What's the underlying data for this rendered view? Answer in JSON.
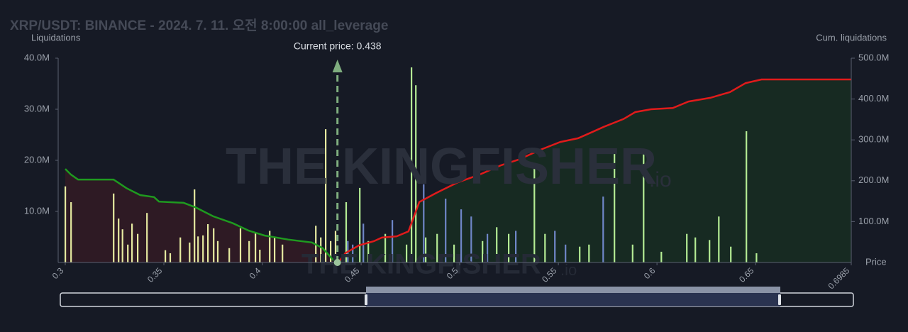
{
  "chart_data": {
    "type": "bar",
    "title": "XRP/USDT: BINANCE - 2024. 7. 11. 오전 8:00:00 all_leverage",
    "y_label": "Liquidations",
    "y2_label": "Cum. liquidations",
    "x_label": "Price",
    "annotation": "Current price: 0.438",
    "current_price": 0.438,
    "watermark": "THE KINGFISHER",
    "watermark_suffix": ".io",
    "xlim": [
      0.3,
      0.6985
    ],
    "xticks": [
      0.3,
      0.35,
      0.4,
      0.45,
      0.5,
      0.55,
      0.6,
      0.65,
      0.6985
    ],
    "ylim": [
      0,
      40
    ],
    "yticks": [
      {
        "value": 10,
        "label": "10.0M"
      },
      {
        "value": 20,
        "label": "20.0M"
      },
      {
        "value": 30,
        "label": "30.0M"
      },
      {
        "value": 40,
        "label": "40.0M"
      }
    ],
    "y2lim": [
      0,
      500
    ],
    "y2ticks": [
      {
        "value": 100,
        "label": "100.0M"
      },
      {
        "value": 200,
        "label": "200.0M"
      },
      {
        "value": 300,
        "label": "300.0M"
      },
      {
        "value": 400,
        "label": "400.0M"
      },
      {
        "value": 500,
        "label": "500.0M"
      }
    ],
    "series": [
      {
        "type": "bar",
        "color": "#e6eaa0",
        "x": [
          0.3,
          0.3029,
          0.3245,
          0.327,
          0.329,
          0.3317,
          0.3338,
          0.3367,
          0.3414,
          0.3507,
          0.3532,
          0.3583,
          0.363,
          0.3655,
          0.3673,
          0.3698,
          0.3723,
          0.3752,
          0.3773,
          0.3831,
          0.3888,
          0.3932,
          0.3964,
          0.3986,
          0.4036,
          0.4061,
          0.4101,
          0.427,
          0.4295,
          0.432,
          0.4345,
          0.437
        ],
        "values": [
          14.9,
          11.8,
          13.5,
          8.6,
          6.5,
          3.5,
          7.6,
          5.6,
          9.7,
          2.4,
          1.8,
          4.9,
          3.9,
          14.3,
          5.1,
          5.3,
          7.5,
          6.7,
          4.2,
          2.8,
          6.7,
          4.2,
          5.8,
          2.5,
          6.2,
          4.9,
          3.5,
          7.2,
          4.9,
          26.1,
          4.2,
          6.2
        ]
      },
      {
        "type": "bar",
        "color": "#b4ec94",
        "x": [
          0.4424,
          0.4493,
          0.4536,
          0.4622,
          0.473,
          0.4755,
          0.4777,
          0.4827,
          0.4885,
          0.4971,
          0.5115,
          0.5187,
          0.5248,
          0.5378,
          0.5432,
          0.5608,
          0.5655,
          0.5784,
          0.5876,
          0.5932,
          0.6022,
          0.6151,
          0.6194,
          0.6266,
          0.6313,
          0.6374,
          0.6453,
          0.6504
        ],
        "values": [
          11.8,
          14.6,
          4.2,
          5.6,
          3.5,
          38.2,
          34.7,
          4.9,
          5.6,
          3.5,
          4.2,
          6.9,
          5.6,
          18.5,
          5.6,
          3.1,
          3.5,
          21.5,
          3.5,
          22.1,
          2.1,
          5.6,
          4.9,
          4.4,
          9.0,
          3.1,
          25.7,
          1.8
        ]
      },
      {
        "type": "bar",
        "color": "#6f86c8",
        "x": [
          0.4432,
          0.4457,
          0.4511,
          0.4658,
          0.4817,
          0.4928,
          0.5007,
          0.5058,
          0.514,
          0.5284,
          0.5482,
          0.5536,
          0.5727
        ],
        "values": [
          4.2,
          3.5,
          7.6,
          8.3,
          15.3,
          12.5,
          10.4,
          9.0,
          5.6,
          6.2,
          6.2,
          3.5,
          12.9
        ]
      },
      {
        "type": "line",
        "axis": "y2",
        "color": "#1f9a1f",
        "fill": "#2e1a24",
        "x": [
          0.3,
          0.3029,
          0.3065,
          0.3245,
          0.331,
          0.338,
          0.345,
          0.3475,
          0.36,
          0.366,
          0.375,
          0.385,
          0.393,
          0.401,
          0.413,
          0.425,
          0.4305,
          0.437
        ],
        "values": [
          229,
          215,
          203,
          203,
          182,
          165,
          160,
          149,
          146,
          135,
          113,
          96,
          78,
          66,
          56,
          49,
          35,
          0
        ]
      },
      {
        "type": "line",
        "axis": "y2",
        "color": "#e01b1b",
        "fill": "#172a22",
        "x": [
          0.4385,
          0.442,
          0.449,
          0.4565,
          0.4605,
          0.468,
          0.474,
          0.4795,
          0.488,
          0.499,
          0.51,
          0.521,
          0.53,
          0.541,
          0.551,
          0.56,
          0.567,
          0.573,
          0.583,
          0.589,
          0.597,
          0.608,
          0.616,
          0.627,
          0.637,
          0.645,
          0.653,
          0.6985
        ],
        "values": [
          0,
          23,
          42,
          52,
          61,
          64,
          76,
          148,
          170,
          196,
          215,
          238,
          252,
          276,
          295,
          304,
          319,
          332,
          351,
          368,
          375,
          378,
          394,
          403,
          417,
          439,
          448,
          448
        ]
      }
    ]
  }
}
